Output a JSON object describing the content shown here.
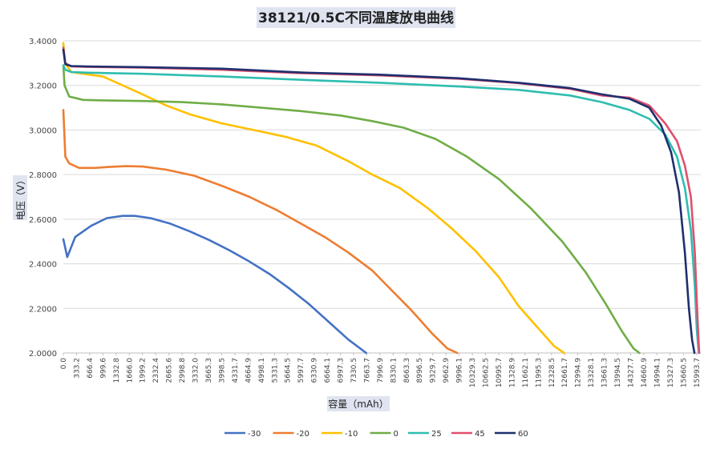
{
  "chart_data": {
    "type": "line",
    "title": "38121/0.5C不同温度放电曲线",
    "xlabel": "容量（mAh）",
    "ylabel": "电压（V）",
    "ylim": [
      2.0,
      3.4
    ],
    "xlim": [
      0,
      16100
    ],
    "y_ticks": [
      "2.0000",
      "2.2000",
      "2.4000",
      "2.6000",
      "2.8000",
      "3.0000",
      "3.2000",
      "3.4000"
    ],
    "x_ticks": [
      "0.0",
      "333.2",
      "666.4",
      "999.6",
      "1332.8",
      "1666.0",
      "1999.2",
      "2332.4",
      "2665.6",
      "2998.8",
      "3332.0",
      "3665.3",
      "3998.5",
      "4331.7",
      "4664.9",
      "4998.1",
      "5331.3",
      "5664.5",
      "5997.7",
      "6330.9",
      "6664.1",
      "6997.3",
      "7330.5",
      "7663.7",
      "7996.9",
      "8330.1",
      "8663.3",
      "8996.5",
      "9329.7",
      "9662.9",
      "9996.1",
      "10329.3",
      "10662.5",
      "10995.7",
      "11328.9",
      "11662.1",
      "11995.3",
      "12328.5",
      "12661.7",
      "12994.9",
      "13328.1",
      "13661.3",
      "13994.5",
      "14327.7",
      "14660.9",
      "14994.1",
      "15327.3",
      "15660.5",
      "15993.7"
    ],
    "grid": true,
    "legend_position": "bottom",
    "series": [
      {
        "name": "-30",
        "color": "#4472c4",
        "x": [
          0,
          100,
          300,
          700,
          1100,
          1500,
          1800,
          2200,
          2700,
          3200,
          3700,
          4200,
          4700,
          5200,
          5700,
          6200,
          6700,
          7200,
          7650
        ],
        "y": [
          2.51,
          2.43,
          2.52,
          2.57,
          2.605,
          2.615,
          2.615,
          2.605,
          2.58,
          2.545,
          2.505,
          2.46,
          2.41,
          2.355,
          2.29,
          2.22,
          2.14,
          2.06,
          2.0
        ]
      },
      {
        "name": "-20",
        "color": "#ed7d31",
        "x": [
          0,
          50,
          150,
          400,
          800,
          1200,
          1600,
          2000,
          2600,
          3300,
          4000,
          4700,
          5400,
          6000,
          6600,
          7200,
          7800,
          8300,
          8800,
          9300,
          9700,
          9950
        ],
        "y": [
          3.09,
          2.88,
          2.85,
          2.83,
          2.83,
          2.835,
          2.838,
          2.836,
          2.822,
          2.795,
          2.75,
          2.7,
          2.64,
          2.58,
          2.52,
          2.45,
          2.37,
          2.28,
          2.19,
          2.09,
          2.02,
          2.0
        ]
      },
      {
        "name": "-10",
        "color": "#ffc000",
        "x": [
          0,
          40,
          200,
          600,
          1000,
          1500,
          2000,
          2600,
          3200,
          4000,
          4800,
          5600,
          6400,
          7200,
          7800,
          8500,
          9200,
          9800,
          10400,
          11000,
          11500,
          12000,
          12400,
          12650
        ],
        "y": [
          3.39,
          3.3,
          3.26,
          3.25,
          3.24,
          3.2,
          3.16,
          3.11,
          3.07,
          3.03,
          3.0,
          2.97,
          2.93,
          2.86,
          2.8,
          2.74,
          2.65,
          2.56,
          2.46,
          2.34,
          2.21,
          2.11,
          2.03,
          2.0
        ]
      },
      {
        "name": "0",
        "color": "#70ad47",
        "x": [
          0,
          30,
          150,
          500,
          1000,
          2000,
          3000,
          4000,
          5000,
          6000,
          7000,
          7800,
          8600,
          9400,
          10200,
          11000,
          11800,
          12600,
          13200,
          13700,
          14100,
          14400,
          14550
        ],
        "y": [
          3.29,
          3.2,
          3.15,
          3.135,
          3.133,
          3.13,
          3.125,
          3.115,
          3.1,
          3.085,
          3.065,
          3.04,
          3.01,
          2.96,
          2.88,
          2.78,
          2.65,
          2.5,
          2.36,
          2.22,
          2.1,
          2.02,
          2.0
        ]
      },
      {
        "name": "25",
        "color": "#2ebdb0",
        "x": [
          0,
          50,
          200,
          600,
          2000,
          4000,
          6000,
          8000,
          10000,
          11500,
          12800,
          13600,
          14300,
          14800,
          15200,
          15500,
          15700,
          15850,
          15950,
          16000,
          16050
        ],
        "y": [
          3.29,
          3.27,
          3.26,
          3.257,
          3.252,
          3.24,
          3.225,
          3.212,
          3.195,
          3.18,
          3.155,
          3.125,
          3.09,
          3.05,
          2.98,
          2.88,
          2.74,
          2.55,
          2.3,
          2.1,
          2.0
        ]
      },
      {
        "name": "45",
        "color": "#e0506e",
        "x": [
          0,
          50,
          200,
          600,
          2000,
          4000,
          6000,
          8000,
          10000,
          11500,
          12800,
          13600,
          14300,
          14800,
          15200,
          15500,
          15700,
          15850,
          15950,
          16020,
          16060
        ],
        "y": [
          3.37,
          3.3,
          3.285,
          3.283,
          3.28,
          3.27,
          3.255,
          3.245,
          3.23,
          3.21,
          3.185,
          3.155,
          3.145,
          3.11,
          3.03,
          2.95,
          2.84,
          2.7,
          2.45,
          2.15,
          2.0
        ]
      },
      {
        "name": "60",
        "color": "#1f2f6e",
        "x": [
          0,
          50,
          200,
          600,
          2000,
          4000,
          6000,
          8000,
          10000,
          11500,
          12800,
          13600,
          14300,
          14800,
          15100,
          15350,
          15550,
          15700,
          15800,
          15880,
          15940
        ],
        "y": [
          3.36,
          3.295,
          3.287,
          3.285,
          3.282,
          3.275,
          3.258,
          3.248,
          3.232,
          3.212,
          3.188,
          3.16,
          3.14,
          3.1,
          3.02,
          2.9,
          2.72,
          2.45,
          2.2,
          2.06,
          2.0
        ]
      }
    ]
  }
}
